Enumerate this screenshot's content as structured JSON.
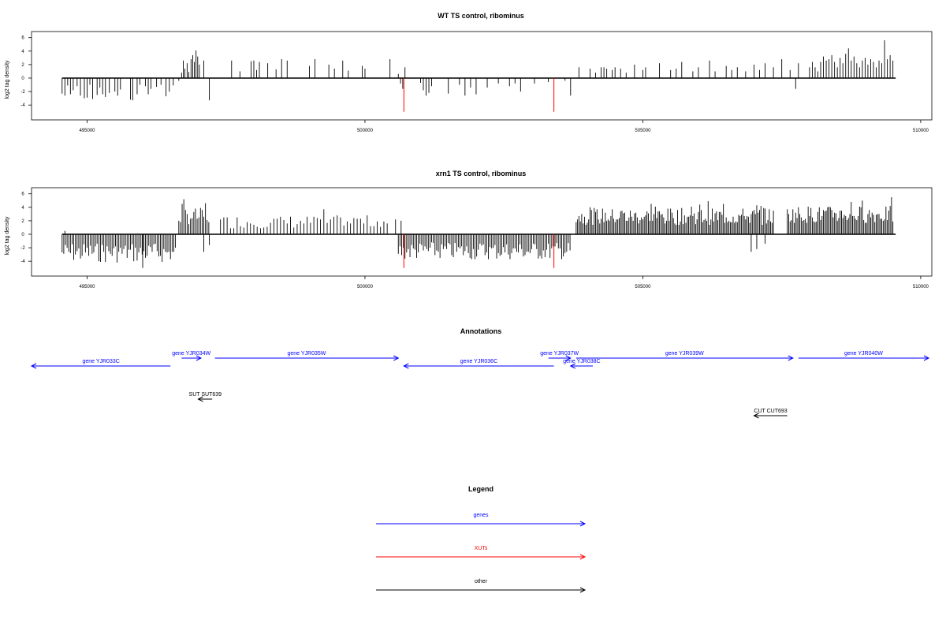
{
  "colors": {
    "bar": "#000000",
    "marker": "#ff0000",
    "gene": "#0000ff",
    "xut": "#ff0000",
    "other": "#000000",
    "frame": "#000000"
  },
  "chart_data": [
    {
      "type": "bar",
      "title": "WT TS control, ribominus",
      "ylabel": "log2 tag density",
      "xlim": [
        494000,
        510200
      ],
      "ylim": [
        -5.5,
        6.2
      ],
      "xticks": [
        495000,
        500000,
        505000,
        510000
      ],
      "yticks": [
        -4,
        -2,
        0,
        2,
        4,
        6
      ],
      "grid": false,
      "markers": [
        500700,
        503400
      ],
      "marker_value": -5,
      "bars": [
        [
          494550,
          -2.3
        ],
        [
          494600,
          -2.6
        ],
        [
          494650,
          -1.1
        ],
        [
          494700,
          -2.4
        ],
        [
          494750,
          -1.8
        ],
        [
          494820,
          -1.2
        ],
        [
          494880,
          -2.6
        ],
        [
          494950,
          -3.0
        ],
        [
          495000,
          -2.9
        ],
        [
          495050,
          -1.0
        ],
        [
          495100,
          -3.1
        ],
        [
          495180,
          -2.5
        ],
        [
          495230,
          -1.4
        ],
        [
          495280,
          -2.4
        ],
        [
          495330,
          -2.8
        ],
        [
          495400,
          -2.2
        ],
        [
          495500,
          -2.0
        ],
        [
          495550,
          -2.6
        ],
        [
          495600,
          -1.7
        ],
        [
          495780,
          -3.2
        ],
        [
          495820,
          -3.3
        ],
        [
          495900,
          -2.4
        ],
        [
          495950,
          -1.0
        ],
        [
          496050,
          -1.2
        ],
        [
          496100,
          -2.4
        ],
        [
          496150,
          -1.6
        ],
        [
          496250,
          -1.3
        ],
        [
          496330,
          -1.0
        ],
        [
          496420,
          -2.7
        ],
        [
          496480,
          -2.0
        ],
        [
          496550,
          -1.1
        ],
        [
          496650,
          -0.4
        ],
        [
          496700,
          0.8
        ],
        [
          496730,
          2.6
        ],
        [
          496760,
          1.4
        ],
        [
          496800,
          2.2
        ],
        [
          496830,
          0.9
        ],
        [
          496870,
          2.8
        ],
        [
          496900,
          3.4
        ],
        [
          496930,
          2.4
        ],
        [
          496960,
          4.1
        ],
        [
          496990,
          3.2
        ],
        [
          497020,
          2.0
        ],
        [
          497100,
          2.6
        ],
        [
          497200,
          -3.3
        ],
        [
          497600,
          2.6
        ],
        [
          497750,
          1.0
        ],
        [
          497950,
          2.5
        ],
        [
          498000,
          2.6
        ],
        [
          498050,
          1.2
        ],
        [
          498100,
          2.4
        ],
        [
          498250,
          2.2
        ],
        [
          498400,
          1.3
        ],
        [
          498500,
          2.8
        ],
        [
          498600,
          2.6
        ],
        [
          499000,
          1.8
        ],
        [
          499100,
          2.8
        ],
        [
          499350,
          2.0
        ],
        [
          499450,
          1.4
        ],
        [
          499600,
          2.6
        ],
        [
          499700,
          1.1
        ],
        [
          499950,
          1.8
        ],
        [
          500000,
          1.4
        ],
        [
          500450,
          2.8
        ],
        [
          500600,
          0.6
        ],
        [
          500640,
          -0.8
        ],
        [
          500680,
          -1.6
        ],
        [
          500720,
          1.6
        ],
        [
          501000,
          -0.7
        ],
        [
          501050,
          -1.8
        ],
        [
          501100,
          -2.6
        ],
        [
          501150,
          -2.2
        ],
        [
          501200,
          -1.2
        ],
        [
          501500,
          -2.3
        ],
        [
          501700,
          -1.0
        ],
        [
          501800,
          -2.6
        ],
        [
          501900,
          -1.4
        ],
        [
          502000,
          -2.4
        ],
        [
          502200,
          -1.4
        ],
        [
          502400,
          -0.8
        ],
        [
          502600,
          -1.2
        ],
        [
          502700,
          -0.8
        ],
        [
          502800,
          -2.0
        ],
        [
          503050,
          -0.8
        ],
        [
          503300,
          -0.6
        ],
        [
          503600,
          -0.4
        ],
        [
          503700,
          -2.6
        ],
        [
          503850,
          1.6
        ],
        [
          504050,
          1.4
        ],
        [
          504150,
          0.8
        ],
        [
          504250,
          1.6
        ],
        [
          504300,
          1.6
        ],
        [
          504350,
          1.4
        ],
        [
          504450,
          1.2
        ],
        [
          504500,
          1.6
        ],
        [
          504600,
          1.4
        ],
        [
          504700,
          0.8
        ],
        [
          504850,
          2.0
        ],
        [
          505000,
          1.2
        ],
        [
          505050,
          1.6
        ],
        [
          505300,
          2.2
        ],
        [
          505500,
          1.2
        ],
        [
          505600,
          1.4
        ],
        [
          505700,
          2.4
        ],
        [
          505900,
          1.0
        ],
        [
          506000,
          1.6
        ],
        [
          506200,
          2.6
        ],
        [
          506300,
          1.0
        ],
        [
          506500,
          1.8
        ],
        [
          506600,
          1.2
        ],
        [
          506700,
          1.6
        ],
        [
          506850,
          1.0
        ],
        [
          507000,
          2.0
        ],
        [
          507100,
          1.2
        ],
        [
          507200,
          2.2
        ],
        [
          507350,
          1.6
        ],
        [
          507500,
          2.8
        ],
        [
          507650,
          1.2
        ],
        [
          507750,
          -1.6
        ],
        [
          507800,
          2.2
        ],
        [
          508000,
          1.6
        ],
        [
          508050,
          2.4
        ],
        [
          508100,
          1.6
        ],
        [
          508150,
          1.0
        ],
        [
          508200,
          2.4
        ],
        [
          508250,
          3.2
        ],
        [
          508300,
          2.6
        ],
        [
          508350,
          2.8
        ],
        [
          508400,
          3.4
        ],
        [
          508450,
          2.4
        ],
        [
          508500,
          1.6
        ],
        [
          508550,
          3.0
        ],
        [
          508600,
          2.2
        ],
        [
          508650,
          3.6
        ],
        [
          508700,
          4.4
        ],
        [
          508750,
          2.6
        ],
        [
          508800,
          3.2
        ],
        [
          508850,
          2.2
        ],
        [
          508900,
          1.6
        ],
        [
          508950,
          2.6
        ],
        [
          509000,
          3.0
        ],
        [
          509050,
          2.0
        ],
        [
          509100,
          2.8
        ],
        [
          509150,
          2.4
        ],
        [
          509200,
          1.6
        ],
        [
          509250,
          2.6
        ],
        [
          509300,
          2.2
        ],
        [
          509350,
          5.6
        ],
        [
          509400,
          2.8
        ],
        [
          509450,
          3.4
        ],
        [
          509500,
          2.6
        ]
      ]
    },
    {
      "type": "bar",
      "title": "xrn1 TS control, ribominus",
      "ylabel": "log2 tag density",
      "xlim": [
        494000,
        510200
      ],
      "ylim": [
        -5.5,
        6.2
      ],
      "xticks": [
        495000,
        500000,
        505000,
        510000
      ],
      "yticks": [
        -4,
        -2,
        0,
        2,
        4,
        6
      ],
      "grid": false,
      "markers": [
        500700,
        503400
      ],
      "marker_value": -5,
      "regions": [
        {
          "from": 494550,
          "to": 496600,
          "min": -4.2,
          "max": -0.3,
          "step": 30
        },
        {
          "from": 496650,
          "to": 497200,
          "min": 0.8,
          "max": 5.3,
          "step": 30
        },
        {
          "from": 497400,
          "to": 500450,
          "min": 0.4,
          "max": 3.8,
          "step": 60
        },
        {
          "from": 500600,
          "to": 503700,
          "min": -3.8,
          "max": -0.3,
          "step": 30
        },
        {
          "from": 503800,
          "to": 507350,
          "min": 0.8,
          "max": 5.2,
          "step": 25
        },
        {
          "from": 507600,
          "to": 509500,
          "min": 1.0,
          "max": 5.6,
          "step": 25
        }
      ],
      "bars": [
        [
          494600,
          0.5
        ],
        [
          496000,
          -5.0
        ],
        [
          497100,
          -2.6
        ],
        [
          497200,
          -1.6
        ],
        [
          500550,
          2.2
        ],
        [
          500650,
          2.0
        ],
        [
          506950,
          -2.6
        ],
        [
          507050,
          -2.2
        ],
        [
          507200,
          -1.4
        ]
      ]
    }
  ],
  "annotations": {
    "title": "Annotations",
    "features": [
      {
        "label": "gene YJR033C",
        "kind": "gene",
        "from": 494000,
        "to": 496500,
        "strand": "-",
        "row": 1
      },
      {
        "label": "gene YJR034W",
        "kind": "gene",
        "from": 496700,
        "to": 497050,
        "strand": "+",
        "row": 0
      },
      {
        "label": "gene YJR035W",
        "kind": "gene",
        "from": 497300,
        "to": 500600,
        "strand": "+",
        "row": 0
      },
      {
        "label": "gene YJR036C",
        "kind": "gene",
        "from": 500700,
        "to": 503400,
        "strand": "-",
        "row": 1
      },
      {
        "label": "gene YJR037W",
        "kind": "gene",
        "from": 503300,
        "to": 503700,
        "strand": "+",
        "row": 0
      },
      {
        "label": "gene YJR038C",
        "kind": "gene",
        "from": 503700,
        "to": 504100,
        "strand": "-",
        "row": 1
      },
      {
        "label": "gene YJR039W",
        "kind": "gene",
        "from": 503800,
        "to": 507700,
        "strand": "+",
        "row": 0
      },
      {
        "label": "gene YJR040W",
        "kind": "gene",
        "from": 507800,
        "to": 510200,
        "strand": "+",
        "row": 0
      },
      {
        "label": "SUT SUT639",
        "kind": "other",
        "from": 497000,
        "to": 497250,
        "strand": "-",
        "row": 3
      },
      {
        "label": "CUT CUT693",
        "kind": "other",
        "from": 507000,
        "to": 507600,
        "strand": "-",
        "row": 4
      }
    ]
  },
  "legend": {
    "title": "Legend",
    "items": [
      {
        "label": "genes",
        "kind": "gene"
      },
      {
        "label": "XUTs",
        "kind": "xut"
      },
      {
        "label": "other",
        "kind": "other"
      }
    ]
  }
}
